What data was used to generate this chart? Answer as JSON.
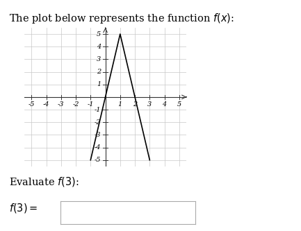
{
  "title": "The plot below represents the function $f(x)$:",
  "evaluate_label": "Evaluate $f(3)$:",
  "answer_label": "$f(3) =$",
  "xlim": [
    -5.5,
    5.5
  ],
  "ylim": [
    -5.5,
    5.5
  ],
  "xticks": [
    -5,
    -4,
    -3,
    -2,
    -1,
    1,
    2,
    3,
    4,
    5
  ],
  "yticks": [
    -5,
    -4,
    -3,
    -2,
    -1,
    1,
    2,
    3,
    4,
    5
  ],
  "line_x": [
    -1,
    1,
    3
  ],
  "line_y": [
    -5,
    5,
    -5
  ],
  "line_color": "#000000",
  "line_width": 1.2,
  "grid_color": "#c8c8c8",
  "axis_color": "#333333",
  "bg_color": "#ffffff",
  "tick_fontsize": 7,
  "title_fontsize": 10.5,
  "eval_fontsize": 10.5,
  "ans_fontsize": 10.5
}
